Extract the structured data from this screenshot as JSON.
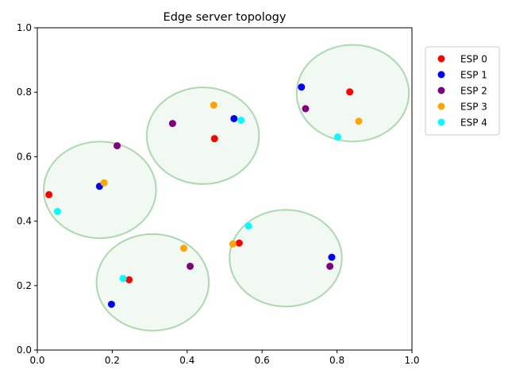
{
  "chart_data": {
    "type": "scatter",
    "title": "Edge server topology",
    "xlabel": "",
    "ylabel": "",
    "xlim": [
      0,
      1
    ],
    "ylim": [
      0,
      1
    ],
    "x_ticks": [
      "0.0",
      "0.2",
      "0.4",
      "0.6",
      "0.8",
      "1.0"
    ],
    "y_ticks": [
      "0.0",
      "0.2",
      "0.4",
      "0.6",
      "0.8",
      "1.0"
    ],
    "grid": false,
    "legend_position": "upper-right-outside",
    "regions": [
      {
        "cx": 0.167,
        "cy": 0.497,
        "rx": 0.15,
        "ry": 0.15,
        "color": "#4caf50"
      },
      {
        "cx": 0.442,
        "cy": 0.665,
        "rx": 0.15,
        "ry": 0.15,
        "color": "#4caf50"
      },
      {
        "cx": 0.842,
        "cy": 0.797,
        "rx": 0.15,
        "ry": 0.15,
        "color": "#4caf50"
      },
      {
        "cx": 0.308,
        "cy": 0.21,
        "rx": 0.15,
        "ry": 0.15,
        "color": "#4caf50"
      },
      {
        "cx": 0.663,
        "cy": 0.285,
        "rx": 0.15,
        "ry": 0.15,
        "color": "#4caf50"
      }
    ],
    "series": [
      {
        "name": "ESP 0",
        "color": "#ff0000",
        "points": [
          [
            0.031,
            0.482
          ],
          [
            0.473,
            0.656
          ],
          [
            0.834,
            0.801
          ],
          [
            0.245,
            0.218
          ],
          [
            0.539,
            0.332
          ]
        ]
      },
      {
        "name": "ESP 1",
        "color": "#0000ff",
        "points": [
          [
            0.166,
            0.508
          ],
          [
            0.525,
            0.718
          ],
          [
            0.705,
            0.816
          ],
          [
            0.198,
            0.142
          ],
          [
            0.786,
            0.288
          ]
        ]
      },
      {
        "name": "ESP 2",
        "color": "#800080",
        "points": [
          [
            0.213,
            0.634
          ],
          [
            0.361,
            0.703
          ],
          [
            0.716,
            0.749
          ],
          [
            0.408,
            0.26
          ],
          [
            0.781,
            0.26
          ]
        ]
      },
      {
        "name": "ESP 3",
        "color": "#ffa500",
        "points": [
          [
            0.178,
            0.519
          ],
          [
            0.471,
            0.76
          ],
          [
            0.858,
            0.71
          ],
          [
            0.391,
            0.316
          ],
          [
            0.522,
            0.329
          ]
        ]
      },
      {
        "name": "ESP 4",
        "color": "#00ffff",
        "points": [
          [
            0.054,
            0.43
          ],
          [
            0.544,
            0.713
          ],
          [
            0.802,
            0.661
          ],
          [
            0.229,
            0.222
          ],
          [
            0.564,
            0.385
          ]
        ]
      }
    ]
  }
}
